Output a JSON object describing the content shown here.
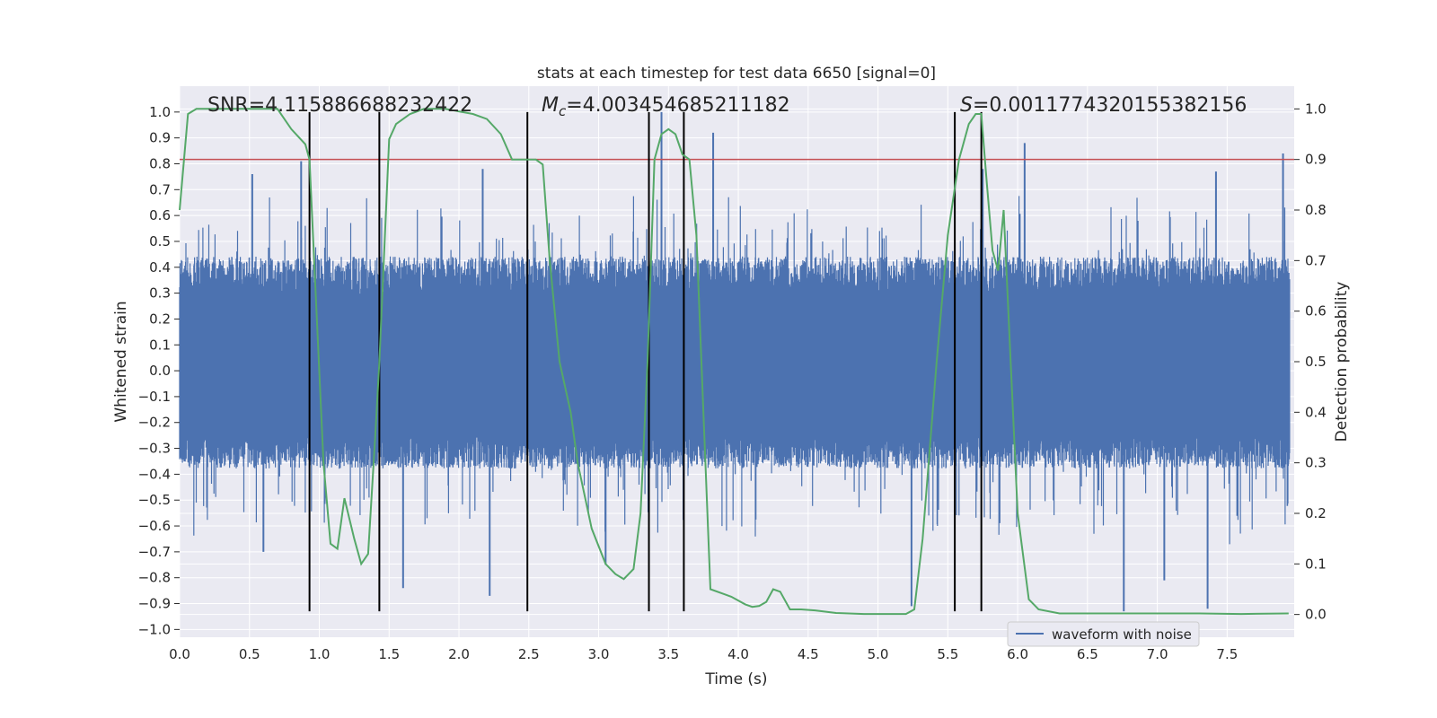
{
  "chart_data": {
    "type": "line",
    "title": "stats at each timestep for test data 6650 [signal=0]",
    "xlabel": "Time (s)",
    "ylabel": "Whitened strain",
    "y2label": "Detection probability",
    "xlim": [
      0.0,
      7.98
    ],
    "ylim": [
      -1.03,
      1.1
    ],
    "y2lim": [
      -0.045,
      1.045
    ],
    "xticks": [
      "0.0",
      "0.5",
      "1.0",
      "1.5",
      "2.0",
      "2.5",
      "3.0",
      "3.5",
      "4.0",
      "4.5",
      "5.0",
      "5.5",
      "6.0",
      "6.5",
      "7.0",
      "7.5"
    ],
    "yticks": [
      "1.0",
      "0.9",
      "0.8",
      "0.7",
      "0.6",
      "0.5",
      "0.4",
      "0.3",
      "0.2",
      "0.1",
      "0.0",
      "−0.1",
      "−0.2",
      "−0.3",
      "−0.4",
      "−0.5",
      "−0.6",
      "−0.7",
      "−0.8",
      "−0.9",
      "−1.0"
    ],
    "y2ticks": [
      "1.0",
      "0.9",
      "0.8",
      "0.7",
      "0.6",
      "0.5",
      "0.4",
      "0.3",
      "0.2",
      "0.1",
      "0.0"
    ],
    "annotations": {
      "snr": "SNR=4.115886688232422",
      "mc_symbol": "M",
      "mc_sub": "c",
      "mc_value": "=4.003454685211182",
      "s_symbol": "S",
      "s_value": "=0.0011774320155382156"
    },
    "legend": {
      "label": "waveform with noise",
      "position": "lower-right"
    },
    "threshold": {
      "value": 0.9,
      "axis": "right",
      "color": "#c44e52"
    },
    "vertical_markers": [
      0.93,
      1.43,
      2.49,
      3.36,
      3.61,
      5.55,
      5.74
    ],
    "marker_range": [
      -0.93,
      1.0
    ],
    "series": [
      {
        "name": "waveform with noise",
        "axis": "left",
        "color": "#4c72b0",
        "kind": "noise",
        "envelope": {
          "typical_max": 0.42,
          "typical_min": -0.36,
          "t_start": 0.0,
          "t_end": 7.95
        },
        "spikes": [
          {
            "x": 0.87,
            "y": 0.81
          },
          {
            "x": 0.52,
            "y": 0.76
          },
          {
            "x": 3.45,
            "y": 1.0
          },
          {
            "x": 3.82,
            "y": 0.92
          },
          {
            "x": 6.05,
            "y": 0.88
          },
          {
            "x": 7.9,
            "y": 0.84
          },
          {
            "x": 5.75,
            "y": 0.78
          },
          {
            "x": 7.42,
            "y": 0.77
          },
          {
            "x": 2.17,
            "y": 0.78
          },
          {
            "x": 6.76,
            "y": -0.93
          },
          {
            "x": 5.24,
            "y": -0.91
          },
          {
            "x": 7.36,
            "y": -0.92
          },
          {
            "x": 2.22,
            "y": -0.87
          },
          {
            "x": 1.6,
            "y": -0.84
          },
          {
            "x": 7.05,
            "y": -0.81
          },
          {
            "x": 0.6,
            "y": -0.7
          },
          {
            "x": 3.05,
            "y": -0.75
          }
        ]
      },
      {
        "name": "Detection probability",
        "axis": "right",
        "color": "#55a868",
        "kind": "line",
        "x": [
          0.0,
          0.06,
          0.12,
          0.3,
          0.5,
          0.7,
          0.8,
          0.9,
          0.93,
          0.98,
          1.03,
          1.08,
          1.13,
          1.18,
          1.25,
          1.3,
          1.35,
          1.4,
          1.43,
          1.5,
          1.55,
          1.65,
          1.75,
          1.9,
          2.1,
          2.2,
          2.3,
          2.38,
          2.45,
          2.55,
          2.6,
          2.65,
          2.72,
          2.8,
          2.85,
          2.95,
          3.05,
          3.12,
          3.18,
          3.25,
          3.3,
          3.35,
          3.4,
          3.45,
          3.5,
          3.55,
          3.6,
          3.65,
          3.7,
          3.8,
          3.9,
          3.95,
          4.05,
          4.1,
          4.15,
          4.2,
          4.25,
          4.3,
          4.37,
          4.45,
          4.55,
          4.7,
          4.9,
          5.1,
          5.2,
          5.26,
          5.32,
          5.42,
          5.5,
          5.58,
          5.65,
          5.7,
          5.74,
          5.78,
          5.82,
          5.86,
          5.9,
          5.95,
          6.0,
          6.08,
          6.15,
          6.3,
          6.5,
          6.7,
          7.0,
          7.3,
          7.6,
          7.94
        ],
        "y": [
          0.8,
          0.99,
          1.0,
          1.0,
          1.0,
          1.0,
          0.96,
          0.93,
          0.9,
          0.6,
          0.3,
          0.14,
          0.13,
          0.23,
          0.15,
          0.1,
          0.12,
          0.35,
          0.5,
          0.94,
          0.97,
          0.99,
          1.0,
          1.0,
          0.99,
          0.98,
          0.95,
          0.9,
          0.9,
          0.9,
          0.89,
          0.7,
          0.5,
          0.4,
          0.3,
          0.17,
          0.1,
          0.08,
          0.07,
          0.09,
          0.2,
          0.5,
          0.9,
          0.95,
          0.96,
          0.95,
          0.91,
          0.9,
          0.75,
          0.05,
          0.04,
          0.035,
          0.02,
          0.015,
          0.017,
          0.025,
          0.05,
          0.045,
          0.01,
          0.01,
          0.008,
          0.003,
          0.001,
          0.001,
          0.001,
          0.01,
          0.15,
          0.5,
          0.75,
          0.9,
          0.97,
          0.99,
          0.99,
          0.85,
          0.72,
          0.68,
          0.8,
          0.5,
          0.2,
          0.03,
          0.01,
          0.002,
          0.002,
          0.002,
          0.002,
          0.002,
          0.001,
          0.002
        ]
      }
    ]
  }
}
